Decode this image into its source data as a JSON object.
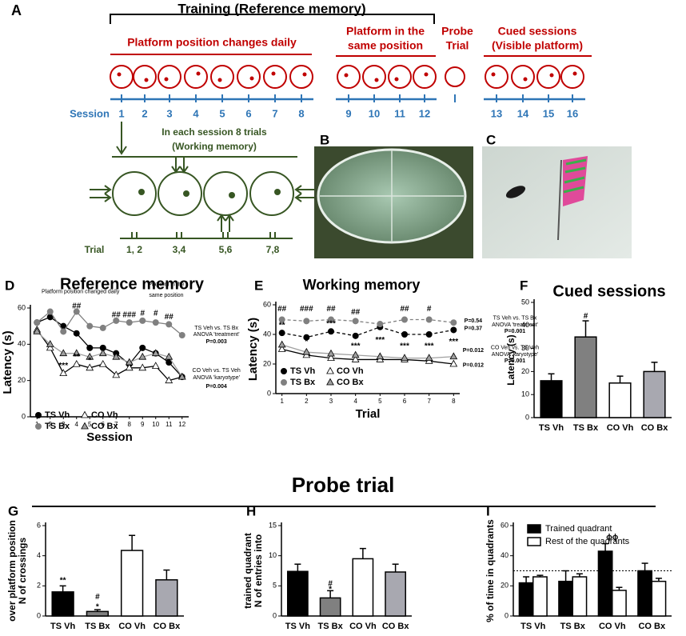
{
  "figure": {
    "panels": [
      "A",
      "B",
      "C"
    ],
    "probe_title": "Probe trial"
  },
  "diagram": {
    "training": "Training (Reference memory)",
    "phase1": "Platform position changes daily",
    "phase2": [
      "Platform in the",
      "same position"
    ],
    "probe": [
      "Probe",
      "Trial"
    ],
    "cued": [
      "Cued sessions",
      "(Visible platform)"
    ],
    "session_label": "Session",
    "sessions": [
      1,
      2,
      3,
      4,
      5,
      6,
      7,
      8,
      9,
      10,
      11,
      12,
      13,
      14,
      15,
      16
    ],
    "trials_note": [
      "In each session 8 trials",
      "(Working memory)"
    ],
    "trial_label": "Trial",
    "trials": [
      "1, 2",
      "3,4",
      "5,6",
      "7,8"
    ]
  },
  "chart_data": [
    {
      "type": "line",
      "panel": "D",
      "title": "Reference memory",
      "xlabel": "Session",
      "ylabel": "Latency (s)",
      "x": [
        1,
        2,
        3,
        4,
        5,
        6,
        7,
        8,
        9,
        10,
        11,
        12
      ],
      "xlim": [
        0.5,
        12.5
      ],
      "xticks": [
        1,
        2,
        3,
        4,
        5,
        6,
        7,
        8,
        9,
        10,
        11,
        12
      ],
      "ylim": [
        0,
        60
      ],
      "yticks": [
        0,
        20,
        40,
        60
      ],
      "series": [
        {
          "name": "TS Vh",
          "color": "#000000",
          "fill": "#000000",
          "marker": "circle",
          "dash": false,
          "values": [
            52,
            55,
            50,
            46,
            38,
            38,
            35,
            29,
            38,
            35,
            30,
            22
          ]
        },
        {
          "name": "TS Bx",
          "color": "#808080",
          "fill": "#808080",
          "marker": "circle",
          "dash": false,
          "values": [
            52,
            58,
            47,
            58,
            50,
            49,
            53,
            52,
            53,
            52,
            51,
            45
          ]
        },
        {
          "name": "CO Vh",
          "color": "#000000",
          "fill": "#ffffff",
          "marker": "triangle",
          "dash": false,
          "values": [
            48,
            38,
            24,
            29,
            27,
            29,
            23,
            27,
            27,
            28,
            20,
            22
          ]
        },
        {
          "name": "CO Bx",
          "color": "#a0a0a0",
          "fill": "#a0a0a0",
          "marker": "triangle",
          "dash": false,
          "values": [
            47,
            40,
            35,
            35,
            33,
            35,
            33,
            30,
            33,
            35,
            33,
            22
          ]
        }
      ],
      "annotations": [
        {
          "text": "***",
          "x": 3,
          "y": 28
        },
        {
          "text": "**",
          "x": 4,
          "y": 33
        },
        {
          "text": "*",
          "x": 5,
          "y": 31
        },
        {
          "text": "##",
          "x": 4,
          "y": 61
        },
        {
          "text": "##",
          "x": 7,
          "y": 56
        },
        {
          "text": "###",
          "x": 8,
          "y": 56
        },
        {
          "text": "#",
          "x": 9,
          "y": 57
        },
        {
          "text": "#",
          "x": 10,
          "y": 57
        },
        {
          "text": "##",
          "x": 11,
          "y": 55
        },
        {
          "text": "Platform position changed daily",
          "x": 4.3,
          "y": 69
        },
        {
          "text": "Platform in the",
          "x": 10.8,
          "y": 73
        },
        {
          "text": "same position",
          "x": 10.8,
          "y": 67
        },
        {
          "text": "TS Veh vs. TS Bx",
          "x": 14.6,
          "y": 49
        },
        {
          "text": "ANOVA 'treatment'",
          "x": 14.6,
          "y": 45.4
        },
        {
          "text": "P=0.003",
          "x": 14.6,
          "y": 41.5
        },
        {
          "text": "CO Veh vs. TS Veh",
          "x": 14.6,
          "y": 25.6
        },
        {
          "text": "ANOVA 'karyotype'",
          "x": 14.6,
          "y": 21.6
        },
        {
          "text": "P=0.004",
          "x": 14.6,
          "y": 16.8
        }
      ]
    },
    {
      "type": "line",
      "panel": "E",
      "title": "Working memory",
      "xlabel": "Trial",
      "ylabel": "Latency (s)",
      "x": [
        1,
        2,
        3,
        4,
        5,
        6,
        7,
        8
      ],
      "xlim": [
        0.75,
        8.25
      ],
      "xticks": [
        1,
        2,
        3,
        4,
        5,
        6,
        7,
        8
      ],
      "ylim": [
        0,
        60
      ],
      "yticks": [
        0,
        20,
        40,
        60
      ],
      "series": [
        {
          "name": "TS Vh",
          "color": "#000000",
          "fill": "#000000",
          "marker": "circle",
          "dash": true,
          "values": [
            41,
            38,
            42,
            39,
            45,
            40,
            40,
            43
          ]
        },
        {
          "name": "TS Bx",
          "color": "#808080",
          "fill": "#808080",
          "marker": "circle",
          "dash": true,
          "values": [
            50,
            49,
            50,
            49,
            47,
            50,
            50,
            48
          ]
        },
        {
          "name": "CO Vh",
          "color": "#000000",
          "fill": "#ffffff",
          "marker": "triangle",
          "dash": false,
          "values": [
            30,
            26,
            24,
            23,
            23,
            23,
            22,
            20
          ]
        },
        {
          "name": "CO Bx",
          "color": "#a0a0a0",
          "fill": "#a0a0a0",
          "marker": "triangle",
          "dash": false,
          "values": [
            33,
            28,
            27,
            26,
            25,
            24,
            24,
            25
          ]
        }
      ],
      "annotations": [
        {
          "text": "##",
          "x": 1,
          "y": 57
        },
        {
          "text": "###",
          "x": 2,
          "y": 57
        },
        {
          "text": "##",
          "x": 3,
          "y": 57
        },
        {
          "text": "##",
          "x": 4,
          "y": 55
        },
        {
          "text": "##",
          "x": 6,
          "y": 57
        },
        {
          "text": "#",
          "x": 7,
          "y": 57
        },
        {
          "text": "**",
          "x": 1,
          "y": 46
        },
        {
          "text": "*",
          "x": 2,
          "y": 35
        },
        {
          "text": "***",
          "x": 3,
          "y": 47
        },
        {
          "text": "***",
          "x": 4,
          "y": 32
        },
        {
          "text": "***",
          "x": 5,
          "y": 36
        },
        {
          "text": "***",
          "x": 6,
          "y": 32
        },
        {
          "text": "***",
          "x": 7,
          "y": 32
        },
        {
          "text": "***",
          "x": 8,
          "y": 35
        },
        {
          "text": "P=0.54",
          "x": 8.8,
          "y": 49
        },
        {
          "text": "TS Veh vs. TS Bx",
          "x": 10.5,
          "y": 51
        },
        {
          "text": "P=0.37",
          "x": 8.8,
          "y": 44
        },
        {
          "text": "ANOVA 'treatment'",
          "x": 10.5,
          "y": 46.5
        },
        {
          "text": "P=0.001",
          "x": 10.5,
          "y": 42
        },
        {
          "text": "P=0.012",
          "x": 8.8,
          "y": 29
        },
        {
          "text": "CO Veh vs. TS Veh",
          "x": 10.5,
          "y": 31
        },
        {
          "text": "ANOVA 'karyotype'",
          "x": 10.5,
          "y": 26.5
        },
        {
          "text": "P=0.001",
          "x": 10.5,
          "y": 22
        },
        {
          "text": "P=0.012",
          "x": 8.8,
          "y": 19
        }
      ]
    },
    {
      "type": "bar",
      "panel": "F",
      "title": "Cued sessions",
      "ylabel": "Latency (s)",
      "categories": [
        "TS Vh",
        "TS Bx",
        "CO Vh",
        "CO Bx"
      ],
      "values": [
        16,
        35,
        15,
        20
      ],
      "errors": [
        3,
        7,
        3,
        4
      ],
      "colors": [
        "#000000",
        "#808080",
        "#ffffff",
        "#a8a8b0"
      ],
      "ylim": [
        0,
        50
      ],
      "yticks": [
        0,
        10,
        20,
        30,
        40,
        50
      ],
      "annotations": [
        {
          "text": "#",
          "x": "TS Bx",
          "y": 44
        }
      ]
    },
    {
      "type": "bar",
      "panel": "G",
      "ylabel": [
        "N of crossings",
        "over platform position"
      ],
      "categories": [
        "TS Vh",
        "TS Bx",
        "CO Vh",
        "CO Bx"
      ],
      "values": [
        1.6,
        0.3,
        4.35,
        2.4
      ],
      "errors": [
        0.4,
        0.12,
        1.0,
        0.65
      ],
      "colors": [
        "#000000",
        "#808080",
        "#ffffff",
        "#a8a8b0"
      ],
      "ylim": [
        0,
        6
      ],
      "yticks": [
        0,
        2,
        4,
        6
      ],
      "annotations": [
        {
          "text": "**",
          "x": "TS Vh",
          "y": 2.35
        },
        {
          "text": "#",
          "x": "TS Bx",
          "y": 1.25
        },
        {
          "text": "*",
          "x": "TS Bx",
          "y": 0.6
        }
      ]
    },
    {
      "type": "bar",
      "panel": "H",
      "ylabel": [
        "N of entries into",
        "trained quadrant"
      ],
      "categories": [
        "TS Vh",
        "TS Bx",
        "CO Vh",
        "CO Bx"
      ],
      "values": [
        7.4,
        3.0,
        9.5,
        7.3
      ],
      "errors": [
        1.2,
        1.2,
        1.7,
        1.3
      ],
      "colors": [
        "#000000",
        "#808080",
        "#ffffff",
        "#a8a8b0"
      ],
      "ylim": [
        0,
        15
      ],
      "yticks": [
        0,
        5,
        10,
        15
      ],
      "annotations": [
        {
          "text": "#",
          "x": "TS Bx",
          "y": 5.3
        },
        {
          "text": "*",
          "x": "TS Bx",
          "y": 4.4
        }
      ]
    },
    {
      "type": "grouped_bar",
      "panel": "I",
      "ylabel": "% of time in quadrants",
      "categories": [
        "TS Vh",
        "TS Bx",
        "CO Vh",
        "CO Bx"
      ],
      "series": [
        {
          "name": "Trained quadrant",
          "color": "#000000",
          "values": [
            22,
            23,
            43,
            30
          ],
          "errors": [
            4,
            7,
            5,
            5
          ]
        },
        {
          "name": "Rest of the quadrants",
          "color": "#ffffff",
          "values": [
            26,
            26,
            17,
            23
          ],
          "errors": [
            1,
            2,
            2,
            2
          ]
        }
      ],
      "ylim": [
        0,
        60
      ],
      "yticks": [
        0,
        20,
        40,
        60
      ],
      "reference_line": 30,
      "legend": "top-left",
      "annotations": [
        {
          "text": "ϕϕ",
          "x": "CO Vh",
          "y": 52
        }
      ]
    }
  ]
}
